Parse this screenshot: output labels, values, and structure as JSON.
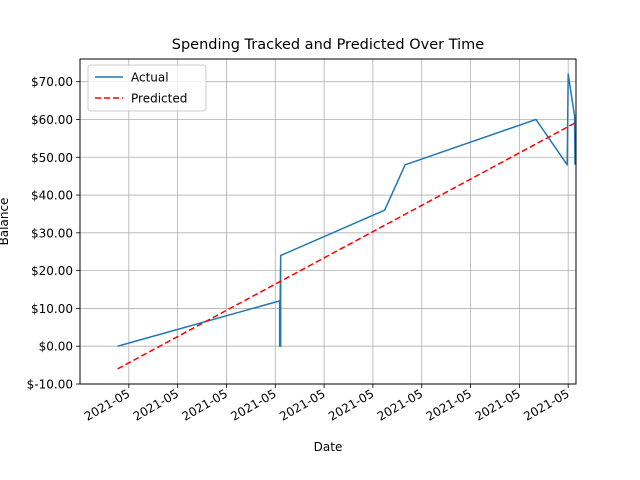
{
  "chart_data": {
    "type": "line",
    "title": "Spending Tracked and Predicted Over Time",
    "xlabel": "Date",
    "ylabel": "Balance",
    "x_tick_labels": [
      "2021-05",
      "2021-05",
      "2021-05",
      "2021-05",
      "2021-05",
      "2021-05",
      "2021-05",
      "2021-05",
      "2021-05",
      "2021-05"
    ],
    "y_ticks": [
      -10,
      0,
      10,
      20,
      30,
      40,
      50,
      60,
      70
    ],
    "y_tick_labels": [
      "$-10.00",
      "$0.00",
      "$10.00",
      "$20.00",
      "$30.00",
      "$40.00",
      "$50.00",
      "$60.00",
      "$70.00"
    ],
    "ylim": [
      -10,
      76
    ],
    "x_axis_note": "Dates share the label 2021-05; x positions are expressed as relative time within May 2021 (tick index units, 0 = first tick).",
    "xlim": [
      -1.0,
      9.16
    ],
    "grid": true,
    "legend_position": "upper-left",
    "series": [
      {
        "name": "Actual",
        "color": "#1f77b4",
        "style": "solid",
        "points": [
          [
            -0.23,
            0
          ],
          [
            3.09,
            12
          ],
          [
            3.09,
            0
          ],
          [
            3.11,
            24
          ],
          [
            3.11,
            0
          ],
          [
            3.11,
            24
          ],
          [
            5.24,
            36
          ],
          [
            5.66,
            48
          ],
          [
            8.34,
            60
          ],
          [
            8.98,
            48
          ],
          [
            9.0,
            72
          ],
          [
            9.13,
            61
          ],
          [
            9.14,
            48
          ]
        ]
      },
      {
        "name": "Predicted",
        "color": "#ff0000",
        "style": "dashed",
        "points": [
          [
            -0.23,
            -6
          ],
          [
            9.13,
            59
          ]
        ]
      }
    ]
  }
}
